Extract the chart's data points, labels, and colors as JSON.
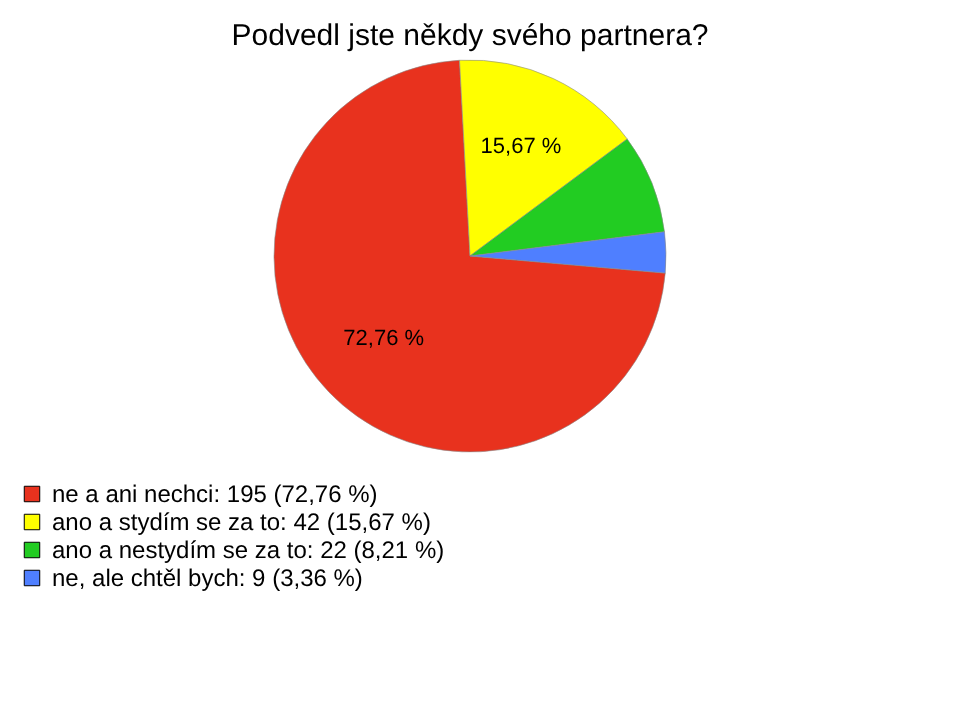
{
  "chart_data": {
    "type": "pie",
    "title": "Podvedl jste někdy svého partnera?",
    "categories": [
      "ne a ani nechci: 195 (72,76 %)",
      "ano a stydím se za to: 42 (15,67 %)",
      "ano a nestydím se za to: 22 (8,21 %)",
      "ne, ale chtěl bych: 9 (3,36 %)"
    ],
    "values": [
      72.76,
      15.67,
      8.21,
      3.36
    ],
    "colors": [
      "#e8321e",
      "#ffff00",
      "#22cc22",
      "#4f7fff"
    ],
    "value_labels": [
      "72,76 %",
      "15,67 %",
      null,
      null
    ],
    "legend": "bottom left"
  }
}
